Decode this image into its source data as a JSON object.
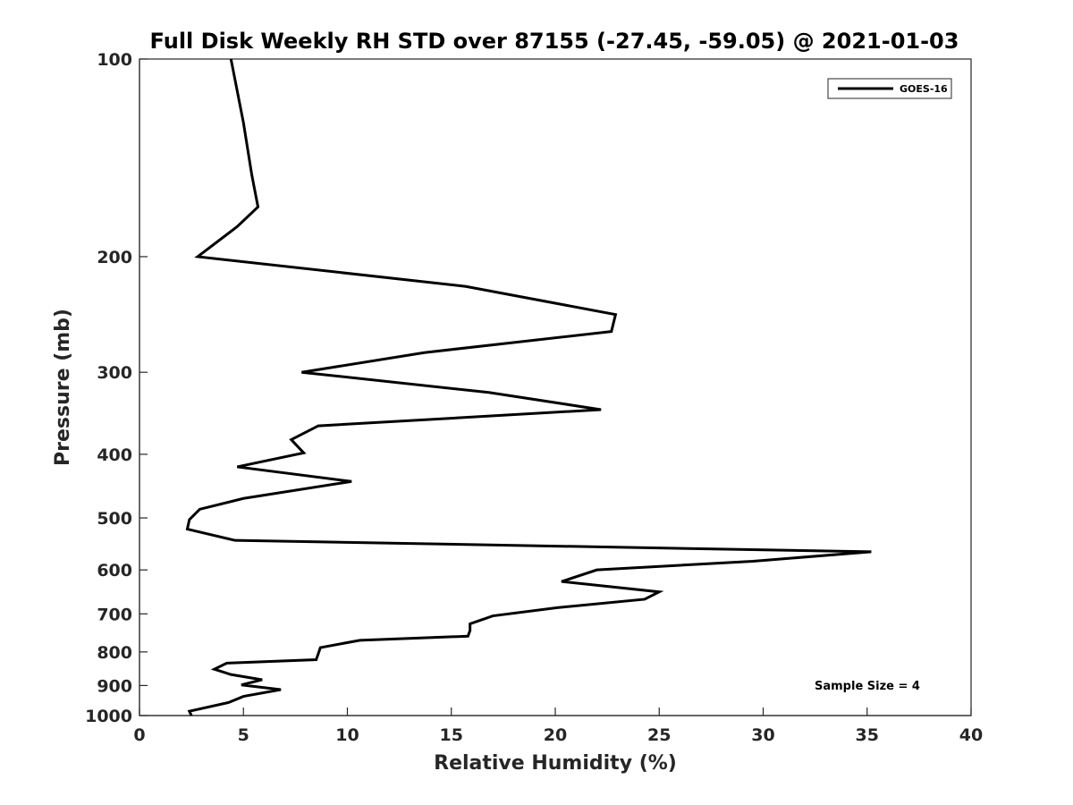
{
  "chart_data": {
    "type": "line",
    "title": "Full Disk Weekly RH STD over 87155 (-27.45, -59.05) @ 2021-01-03",
    "xlabel": "Relative Humidity (%)",
    "ylabel": "Pressure (mb)",
    "xlim": [
      0,
      40
    ],
    "ylim": [
      1000,
      100
    ],
    "yscale": "log",
    "grid": false,
    "legend_position": "top-right",
    "xticks": [
      0,
      5,
      10,
      15,
      20,
      25,
      30,
      35,
      40
    ],
    "yticks": [
      100,
      200,
      300,
      400,
      500,
      600,
      700,
      800,
      900,
      1000
    ],
    "annotation": "Sample Size = 4",
    "series": [
      {
        "name": "GOES-16",
        "color": "#000000",
        "points": [
          [
            4.4,
            100
          ],
          [
            5.0,
            125
          ],
          [
            5.4,
            150
          ],
          [
            5.7,
            168
          ],
          [
            4.7,
            180
          ],
          [
            2.8,
            200
          ],
          [
            15.7,
            222
          ],
          [
            22.9,
            245
          ],
          [
            22.7,
            260
          ],
          [
            13.7,
            280
          ],
          [
            7.8,
            300
          ],
          [
            16.8,
            322
          ],
          [
            22.2,
            342
          ],
          [
            8.6,
            362
          ],
          [
            7.3,
            380
          ],
          [
            7.9,
            398
          ],
          [
            4.7,
            418
          ],
          [
            10.2,
            440
          ],
          [
            5.0,
            467
          ],
          [
            2.9,
            485
          ],
          [
            2.4,
            503
          ],
          [
            2.3,
            520
          ],
          [
            4.6,
            541
          ],
          [
            35.2,
            563
          ],
          [
            29.5,
            582
          ],
          [
            22.0,
            600
          ],
          [
            20.3,
            625
          ],
          [
            25.0,
            648
          ],
          [
            24.3,
            665
          ],
          [
            20.1,
            685
          ],
          [
            17.0,
            705
          ],
          [
            15.9,
            725
          ],
          [
            15.9,
            742
          ],
          [
            15.8,
            757
          ],
          [
            10.6,
            768
          ],
          [
            8.7,
            788
          ],
          [
            8.6,
            805
          ],
          [
            8.5,
            822
          ],
          [
            4.2,
            832
          ],
          [
            3.6,
            850
          ],
          [
            4.4,
            866
          ],
          [
            5.9,
            882
          ],
          [
            4.9,
            898
          ],
          [
            6.8,
            913
          ],
          [
            5.0,
            935
          ],
          [
            4.3,
            955
          ],
          [
            2.4,
            985
          ],
          [
            2.5,
            1000
          ]
        ]
      }
    ]
  }
}
